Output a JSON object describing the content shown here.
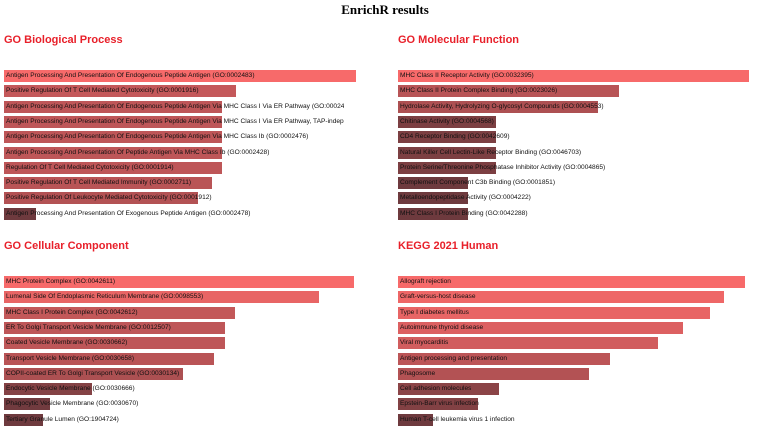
{
  "title": "EnrichR results",
  "colors": {
    "title": "#e8202a",
    "high": "#f76a6a",
    "low": "#6e3a3e"
  },
  "chart_data": [
    {
      "type": "bar",
      "orientation": "horizontal",
      "title": "GO Biological Process",
      "terms": [
        "Antigen Processing And Presentation Of Endogenous Peptide Antigen (GO:0002483)",
        "Positive Regulation Of T Cell Mediated Cytotoxicity (GO:0001916)",
        "Antigen Processing And Presentation Of Endogenous Peptide Antigen Via MHC Class I Via ER Pathway (GO:00024",
        "Antigen Processing And Presentation Of Endogenous Peptide Antigen Via MHC Class I Via ER Pathway, TAP-indep",
        "Antigen Processing And Presentation Of Endogenous Peptide Antigen Via MHC Class Ib (GO:0002476)",
        "Antigen Processing And Presentation Of Peptide Antigen Via MHC Class Ib (GO:0002428)",
        "Regulation Of T Cell Mediated Cytotoxicity (GO:0001914)",
        "Positive Regulation Of T Cell Mediated Immunity (GO:0002711)",
        "Positive Regulation Of Leukocyte Mediated Cytotoxicity (GO:0001912)",
        "Antigen Processing And Presentation Of Exogenous Peptide Antigen (GO:0002478)"
      ],
      "values": [
        1.0,
        0.66,
        0.62,
        0.62,
        0.62,
        0.62,
        0.62,
        0.59,
        0.55,
        0.09
      ]
    },
    {
      "type": "bar",
      "orientation": "horizontal",
      "title": "GO Molecular Function",
      "terms": [
        "MHC Class II Receptor Activity (GO:0032395)",
        "MHC Class II Protein Complex Binding (GO:0023026)",
        "Hydrolase Activity, Hydrolyzing O-glycosyl Compounds (GO:0004553)",
        "Chitinase Activity (GO:0004568)",
        "CD4 Receptor Binding (GO:0042609)",
        "Natural Killer Cell Lectin-Like Receptor Binding (GO:0046703)",
        "Protein Serine/Threonine Phosphatase Inhibitor Activity (GO:0004865)",
        "Complement Component C3b Binding (GO:0001851)",
        "Metalloendopeptidase Activity (GO:0004222)",
        "MHC Class I Protein Binding (GO:0042288)"
      ],
      "values": [
        1.0,
        0.63,
        0.57,
        0.28,
        0.28,
        0.28,
        0.28,
        0.2,
        0.2,
        0.2
      ]
    },
    {
      "type": "bar",
      "orientation": "horizontal",
      "title": "GO Cellular Component",
      "terms": [
        "MHC Protein Complex (GO:0042611)",
        "Lumenal Side Of Endoplasmic Reticulum Membrane (GO:0098553)",
        "MHC Class I Protein Complex (GO:0042612)",
        "ER To Golgi Transport Vesicle Membrane (GO:0012507)",
        "Coated Vesicle Membrane (GO:0030662)",
        "Transport Vesicle Membrane (GO:0030658)",
        "COPII-coated ER To Golgi Transport Vesicle (GO:0030134)",
        "Endocytic Vesicle Membrane (GO:0030666)",
        "Phagocytic Vesicle Membrane (GO:0030670)",
        "Tertiary Granule Lumen (GO:1904724)"
      ],
      "values": [
        1.0,
        0.9,
        0.66,
        0.63,
        0.63,
        0.6,
        0.51,
        0.25,
        0.13,
        0.11
      ]
    },
    {
      "type": "bar",
      "orientation": "horizontal",
      "title": "KEGG 2021 Human",
      "terms": [
        "Allograft rejection",
        "Graft-versus-host disease",
        "Type I diabetes mellitus",
        "Autoimmune thyroid disease",
        "Viral myocarditis",
        "Antigen processing and presentation",
        "Phagosome",
        "Cell adhesion molecules",
        "Epstein-Barr virus infection",
        "Human T-cell leukemia virus 1 infection"
      ],
      "values": [
        1.0,
        0.94,
        0.9,
        0.82,
        0.75,
        0.61,
        0.55,
        0.29,
        0.23,
        0.1
      ]
    }
  ]
}
